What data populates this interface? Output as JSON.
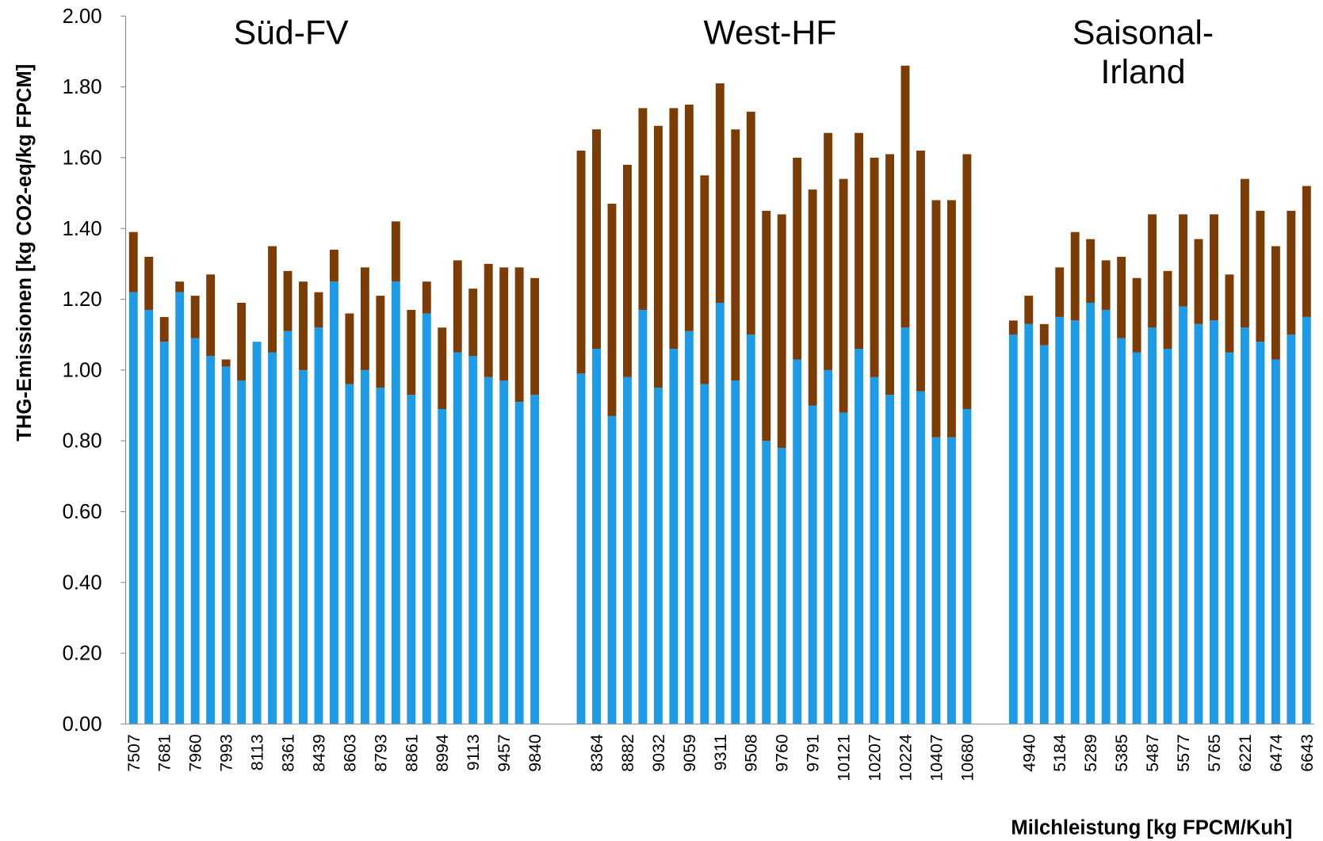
{
  "chart_data": {
    "type": "stacked_bar",
    "y_label": "THG-Emissionen [kg CO2-eq/kg FPCM]",
    "x_label": "Milchleistung [kg FPCM/Kuh]",
    "annotations": [
      {
        "lines": [
          "Süd-FV"
        ]
      },
      {
        "lines": [
          "West-HF"
        ]
      },
      {
        "lines": [
          "Saisonal-",
          "Irland"
        ]
      }
    ],
    "categories": [
      "7507",
      null,
      "7681",
      null,
      "7960",
      null,
      "7993",
      null,
      "8113",
      null,
      "8361",
      null,
      "8439",
      null,
      "8603",
      null,
      "8793",
      null,
      "8861",
      null,
      "8994",
      null,
      "9113",
      null,
      "9457",
      null,
      "9840",
      null,
      null,
      null,
      "8364",
      null,
      "8882",
      null,
      "9032",
      null,
      "9059",
      null,
      "9311",
      null,
      "9508",
      null,
      "9760",
      null,
      "9791",
      null,
      "10121",
      null,
      "10207",
      null,
      "10224",
      null,
      "10407",
      null,
      "10680",
      null,
      null,
      null,
      "4940",
      null,
      "5184",
      null,
      "5289",
      null,
      "5385",
      null,
      "5487",
      null,
      "5577",
      null,
      "5765",
      null,
      "6221",
      null,
      "6474",
      null,
      "6643"
    ],
    "series": [
      {
        "color": "#1e9be6",
        "values": [
          1.22,
          1.17,
          1.08,
          1.22,
          1.09,
          1.04,
          1.01,
          0.97,
          1.08,
          1.05,
          1.11,
          1.0,
          1.12,
          1.25,
          0.96,
          1.0,
          0.95,
          1.25,
          0.93,
          1.16,
          0.89,
          1.05,
          1.04,
          0.98,
          0.97,
          0.91,
          0.93,
          null,
          null,
          0.99,
          1.06,
          0.87,
          0.98,
          1.17,
          0.95,
          1.06,
          1.11,
          0.96,
          1.19,
          0.97,
          1.1,
          0.8,
          0.78,
          1.03,
          0.9,
          1.0,
          0.88,
          1.06,
          0.98,
          0.93,
          1.12,
          0.94,
          0.81,
          0.81,
          0.89,
          null,
          null,
          1.1,
          1.13,
          1.07,
          1.15,
          1.14,
          1.19,
          1.17,
          1.09,
          1.05,
          1.12,
          1.06,
          1.18,
          1.13,
          1.14,
          1.05,
          1.12,
          1.08,
          1.03,
          1.1,
          1.15
        ]
      },
      {
        "color": "#7b3c05",
        "values": [
          0.17,
          0.15,
          0.07,
          0.03,
          0.12,
          0.23,
          0.02,
          0.22,
          0,
          0.3,
          0.17,
          0.25,
          0.1,
          0.09,
          0.2,
          0.29,
          0.26,
          0.17,
          0.24,
          0.09,
          0.23,
          0.26,
          0.19,
          0.32,
          0.32,
          0.38,
          0.33,
          null,
          null,
          0.63,
          0.62,
          0.6,
          0.6,
          0.57,
          0.74,
          0.68,
          0.64,
          0.59,
          0.62,
          0.71,
          0.63,
          0.65,
          0.66,
          0.57,
          0.61,
          0.67,
          0.66,
          0.61,
          0.62,
          0.68,
          0.74,
          0.68,
          0.67,
          0.67,
          0.72,
          null,
          null,
          0.04,
          0.08,
          0.06,
          0.14,
          0.25,
          0.18,
          0.14,
          0.23,
          0.21,
          0.32,
          0.22,
          0.26,
          0.24,
          0.3,
          0.22,
          0.42,
          0.37,
          0.32,
          0.35,
          0.37
        ]
      }
    ],
    "ylim": [
      0,
      2
    ],
    "yticks": [
      {
        "value": 0,
        "label": "0.00"
      },
      {
        "value": 0.2,
        "label": "0.20"
      },
      {
        "value": 0.4,
        "label": "0.40"
      },
      {
        "value": 0.6,
        "label": "0.60"
      },
      {
        "value": 0.8,
        "label": "0.80"
      },
      {
        "value": 1,
        "label": "1.00"
      },
      {
        "value": 1.2,
        "label": "1.20"
      },
      {
        "value": 1.4,
        "label": "1.40"
      },
      {
        "value": 1.6,
        "label": "1.60"
      },
      {
        "value": 1.8,
        "label": "1.80"
      },
      {
        "value": 2,
        "label": "2.00"
      }
    ]
  }
}
